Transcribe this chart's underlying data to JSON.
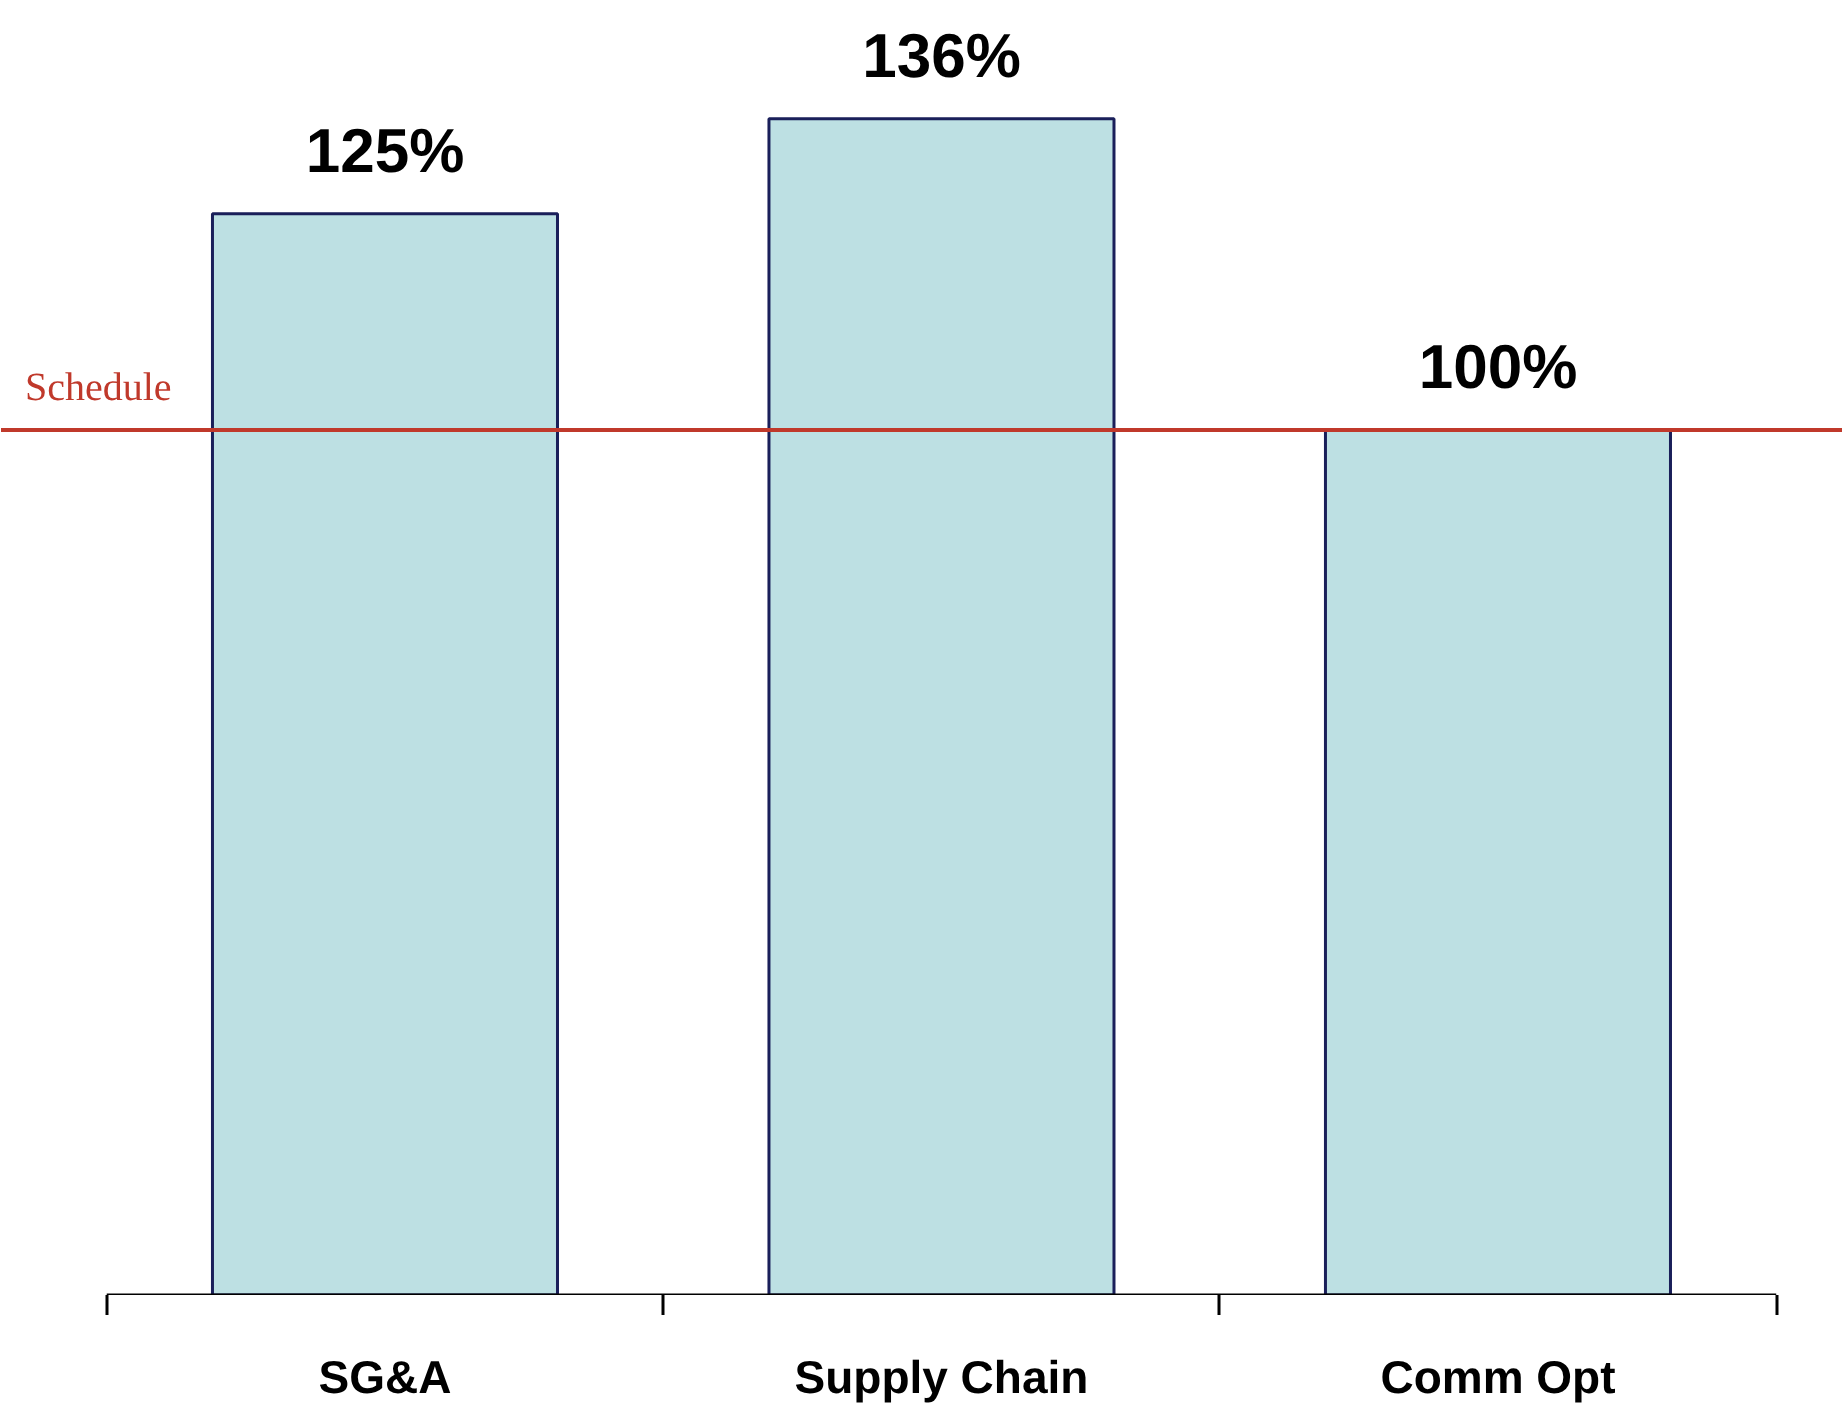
{
  "chart_data": {
    "type": "bar",
    "categories": [
      "SG&A",
      "Supply Chain",
      "Comm Opt"
    ],
    "values": [
      125,
      136,
      100
    ],
    "color": "#bde0e3",
    "value_labels": [
      "125%",
      "136%",
      "100%"
    ],
    "ref_lines": [
      {
        "axis": "y",
        "value": 100,
        "label": "Schedule",
        "color": "#c0392b"
      }
    ],
    "grid": false,
    "tick_labels": "x"
  }
}
